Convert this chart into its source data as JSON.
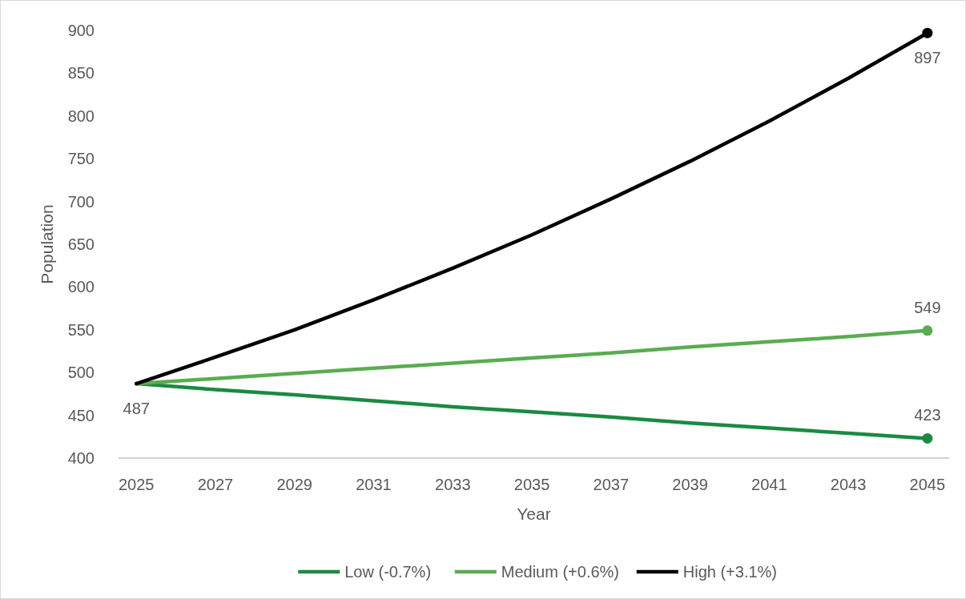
{
  "chart_data": {
    "type": "line",
    "xlabel": "Year",
    "ylabel": "Population",
    "xlim": [
      2024.55,
      2045.55
    ],
    "xticks": [
      2025,
      2027,
      2029,
      2031,
      2033,
      2035,
      2037,
      2039,
      2041,
      2043,
      2045
    ],
    "ylim": [
      400,
      900
    ],
    "yticks": [
      400,
      450,
      500,
      550,
      600,
      650,
      700,
      750,
      800,
      850,
      900
    ],
    "grid": false,
    "legend": "bottom",
    "marker": "none",
    "series": [
      {
        "name": "Low (-0.7%)",
        "color": "#1a8a42",
        "x": [
          2025,
          2027,
          2029,
          2031,
          2033,
          2035,
          2037,
          2039,
          2041,
          2043,
          2045
        ],
        "values": [
          487,
          480,
          474,
          467,
          460,
          454,
          448,
          441,
          435,
          429,
          423
        ],
        "value_labels": [
          "487",
          null,
          null,
          null,
          null,
          null,
          null,
          null,
          null,
          null,
          null
        ]
      },
      {
        "name": "Medium (+0.6%)",
        "color": "#5aac50",
        "x": [
          2025,
          2027,
          2029,
          2031,
          2033,
          2035,
          2037,
          2039,
          2041,
          2043,
          2045
        ],
        "values": [
          487,
          493,
          499,
          505,
          511,
          517,
          523,
          530,
          536,
          542,
          549
        ]
      },
      {
        "name": "High (+3.1%)",
        "color": "#000000",
        "x": [
          2025,
          2027,
          2029,
          2031,
          2033,
          2035,
          2037,
          2039,
          2041,
          2043,
          2045
        ],
        "values": [
          487,
          518,
          550,
          585,
          622,
          661,
          703,
          747,
          794,
          844,
          897
        ]
      },
      {
        "type": "scatter",
        "marker": "circle",
        "color": "#1a8a42",
        "x": [
          2045
        ],
        "values": [
          423
        ],
        "value_labels": [
          "423"
        ]
      },
      {
        "type": "scatter",
        "marker": "circle",
        "color": "#5aac50",
        "x": [
          2045
        ],
        "values": [
          549
        ],
        "value_labels": [
          "549"
        ]
      },
      {
        "type": "scatter",
        "marker": "circle",
        "color": "#000000",
        "x": [
          2045
        ],
        "values": [
          897
        ],
        "value_labels": [
          "897"
        ]
      }
    ]
  }
}
